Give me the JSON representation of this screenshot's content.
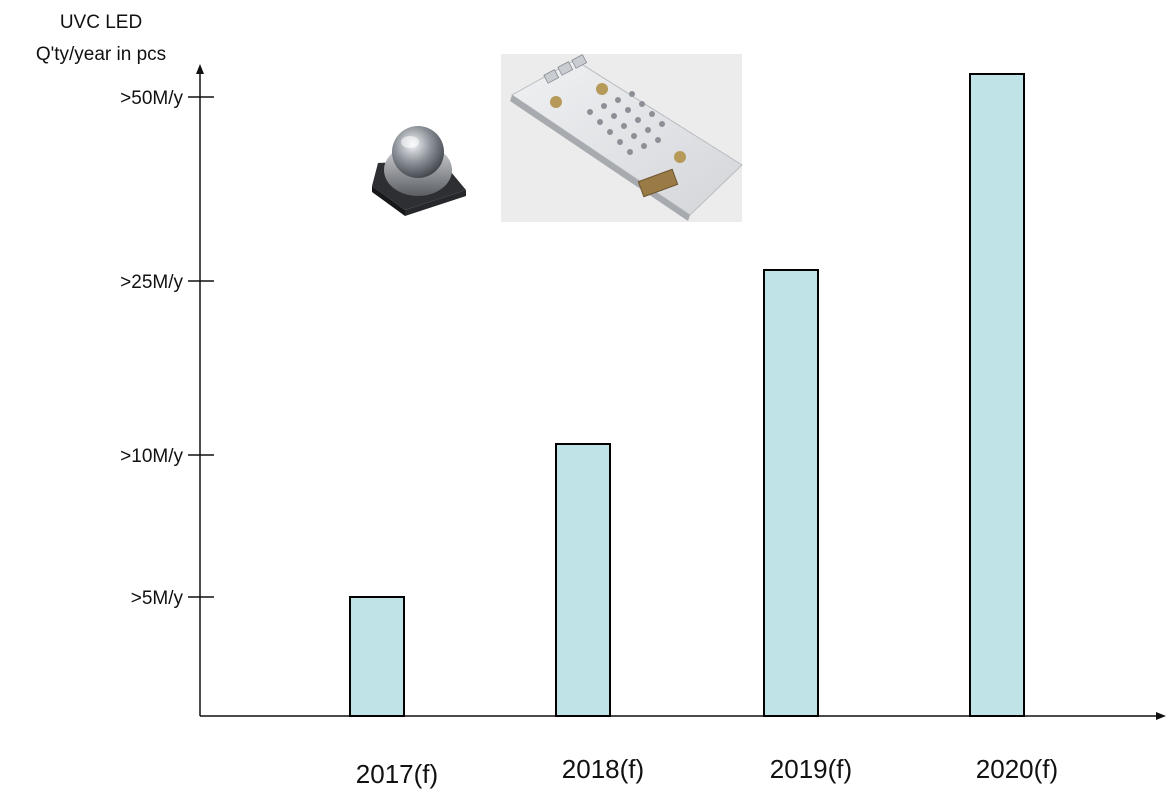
{
  "chart_data": {
    "type": "bar",
    "ylabel": [
      "UVC LED",
      "Q'ty/year in pcs"
    ],
    "xlabel": "",
    "categories": [
      "2017(f)",
      "2018(f)",
      "2019(f)",
      "2020(f)"
    ],
    "values": [
      5,
      10,
      25,
      50
    ],
    "y_tick_labels": [
      ">5M/y",
      ">10M/y",
      ">25M/y",
      ">50M/y"
    ],
    "value_unit": "million pcs per year",
    "bar_color": "#bfe3e6",
    "bar_stroke": "#000000",
    "grid": false,
    "scale_note": "non-linear categorical y axis"
  }
}
